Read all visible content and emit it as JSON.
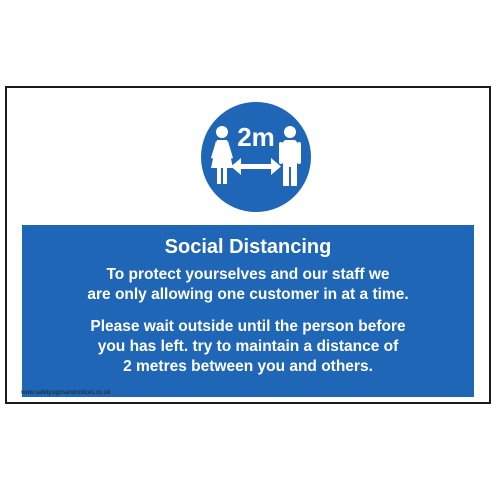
{
  "symbol": {
    "distance_label": "2m",
    "icons": [
      "female-figure-icon",
      "male-figure-icon",
      "double-arrow-icon"
    ]
  },
  "panel": {
    "title": "Social Distancing",
    "paragraph_1_line_1": "To protect yourselves and our staff we",
    "paragraph_1_line_2": "are only allowing one customer in at a time.",
    "paragraph_2_line_1": "Please wait outside until the person before",
    "paragraph_2_line_2": "you has left. try to maintain a distance of",
    "paragraph_2_line_3": "2 metres between you and others."
  },
  "footer": {
    "website": "www.safetysignsandnotices.co.uk"
  },
  "colors": {
    "brand_blue": "#1f66b6",
    "border": "#1a1a1a",
    "white": "#ffffff"
  }
}
